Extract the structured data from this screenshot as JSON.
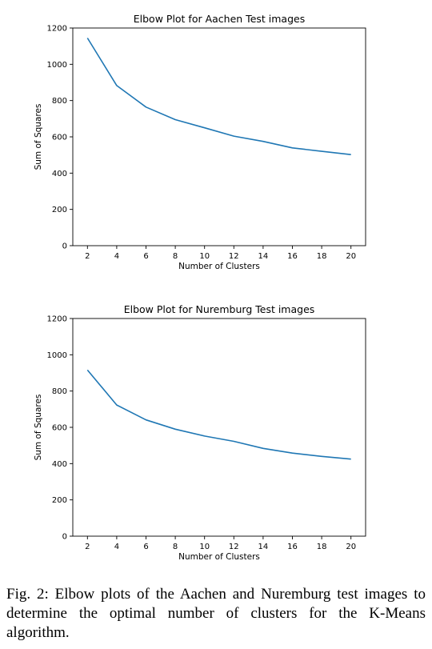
{
  "chart_data": [
    {
      "type": "line",
      "title": "Elbow Plot for Aachen Test images",
      "xlabel": "Number of Clusters",
      "ylabel": "Sum of Squares",
      "xlim": [
        1,
        21
      ],
      "ylim": [
        0,
        1200
      ],
      "xticks": [
        "2",
        "4",
        "6",
        "8",
        "10",
        "12",
        "14",
        "16",
        "18",
        "20"
      ],
      "yticks": [
        "0",
        "200",
        "400",
        "600",
        "800",
        "1000",
        "1200"
      ],
      "grid": false,
      "line_color": "#1f77b4",
      "x": [
        2,
        4,
        6,
        8,
        10,
        12,
        14,
        16,
        18,
        20
      ],
      "y": [
        1145,
        883,
        764,
        695,
        650,
        604,
        575,
        539,
        520,
        502
      ]
    },
    {
      "type": "line",
      "title": "Elbow Plot for Nuremburg Test images",
      "xlabel": "Number of Clusters",
      "ylabel": "Sum of Squares",
      "xlim": [
        1,
        21
      ],
      "ylim": [
        0,
        1200
      ],
      "xticks": [
        "2",
        "4",
        "6",
        "8",
        "10",
        "12",
        "14",
        "16",
        "18",
        "20"
      ],
      "yticks": [
        "0",
        "200",
        "400",
        "600",
        "800",
        "1000",
        "1200"
      ],
      "grid": false,
      "line_color": "#1f77b4",
      "x": [
        2,
        4,
        6,
        8,
        10,
        12,
        14,
        16,
        18,
        20
      ],
      "y": [
        916,
        723,
        641,
        590,
        552,
        523,
        484,
        458,
        440,
        425
      ]
    }
  ],
  "caption": "Fig. 2: Elbow plots of the Aachen and Nuremburg test images to determine the optimal number of clusters for the K-Means algorithm."
}
